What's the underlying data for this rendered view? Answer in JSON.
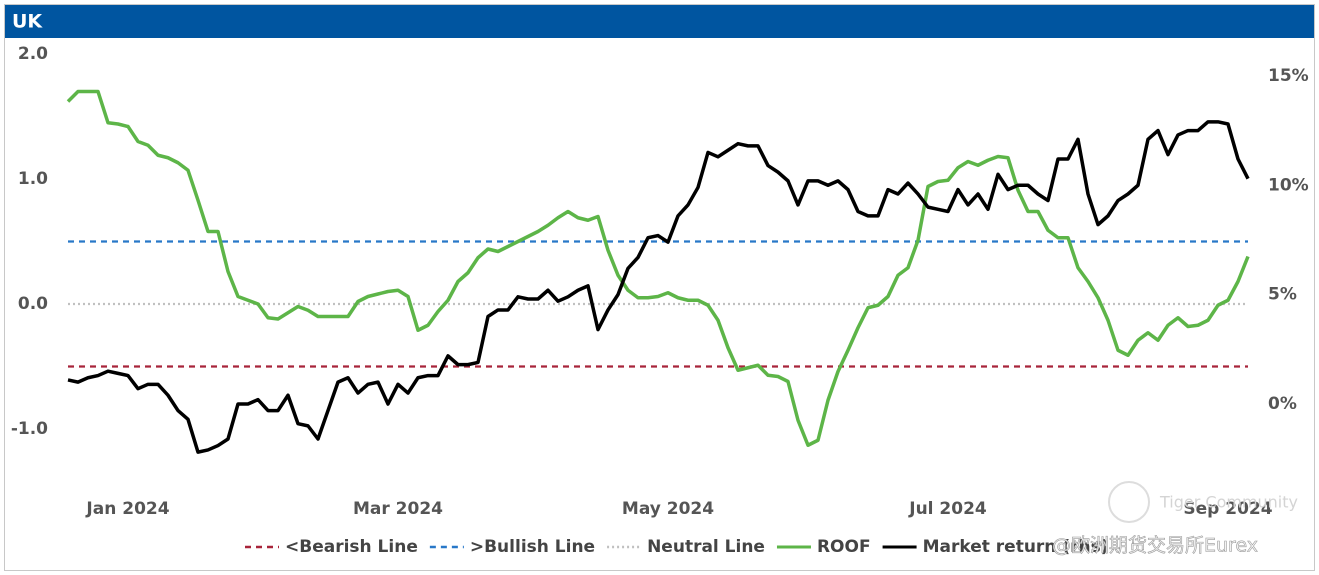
{
  "chart_data": {
    "type": "line",
    "title": "UK",
    "categories": [
      null,
      null,
      null,
      null,
      null,
      null,
      "Jan 2024",
      null,
      null,
      null,
      null,
      null,
      null,
      null,
      null,
      null,
      null,
      null,
      null,
      null,
      null,
      null,
      null,
      null,
      null,
      null,
      null,
      null,
      null,
      null,
      null,
      null,
      null,
      "Mar 2024",
      null,
      null,
      null,
      null,
      null,
      null,
      null,
      null,
      null,
      null,
      null,
      null,
      null,
      null,
      null,
      null,
      null,
      null,
      null,
      null,
      null,
      null,
      null,
      null,
      null,
      null,
      "May 2024",
      null,
      null,
      null,
      null,
      null,
      null,
      null,
      null,
      null,
      null,
      null,
      null,
      null,
      null,
      null,
      null,
      null,
      null,
      null,
      null,
      null,
      null,
      null,
      null,
      null,
      null,
      null,
      "Jul 2024",
      null,
      null,
      null,
      null,
      null,
      null,
      null,
      null,
      null,
      null,
      null,
      null,
      null,
      null,
      null,
      null,
      null,
      null,
      null,
      null,
      null,
      null,
      null,
      null,
      null,
      null,
      null,
      "Sep 2024",
      null,
      null
    ],
    "ylim": [
      -1.5,
      2.0
    ],
    "yticks": [
      {
        "value": 2.0,
        "label": "2.0"
      },
      {
        "value": 1.0,
        "label": "1.0"
      },
      {
        "value": 0.0,
        "label": "0.0"
      },
      {
        "value": -1.0,
        "label": "-1.0"
      }
    ],
    "y2lim": [
      -4,
      16
    ],
    "y2ticks": [
      {
        "value": 15,
        "label": "15%"
      },
      {
        "value": 10,
        "label": "10%"
      },
      {
        "value": 5,
        "label": "5%"
      },
      {
        "value": 0,
        "label": "0%"
      }
    ],
    "reference_lines": [
      {
        "name": "<Bearish Line",
        "value": -0.5,
        "color": "#a8243a",
        "style": "dashed"
      },
      {
        "name": ">Bullish Line",
        "value": 0.5,
        "color": "#2878c8",
        "style": "dashed"
      },
      {
        "name": "Neutral Line",
        "value": 0.0,
        "color": "#c0c0c0",
        "style": "dotted"
      }
    ],
    "series": [
      {
        "name": "ROOF",
        "color": "#5db548",
        "values": [
          1.62,
          1.7,
          1.7,
          1.7,
          1.45,
          1.44,
          1.42,
          1.3,
          1.27,
          1.19,
          1.17,
          1.13,
          1.07,
          0.83,
          0.58,
          0.58,
          0.26,
          0.06,
          0.03,
          0.0,
          -0.11,
          -0.12,
          -0.07,
          -0.02,
          -0.05,
          -0.1,
          -0.1,
          -0.1,
          -0.1,
          0.02,
          0.06,
          0.08,
          0.1,
          0.11,
          0.06,
          -0.21,
          -0.17,
          -0.06,
          0.03,
          0.18,
          0.25,
          0.37,
          0.44,
          0.42,
          0.46,
          0.5,
          0.54,
          0.58,
          0.63,
          0.69,
          0.74,
          0.69,
          0.67,
          0.7,
          0.43,
          0.23,
          0.11,
          0.05,
          0.05,
          0.06,
          0.09,
          0.05,
          0.03,
          0.03,
          -0.01,
          -0.13,
          -0.35,
          -0.53,
          -0.51,
          -0.49,
          -0.57,
          -0.58,
          -0.62,
          -0.93,
          -1.13,
          -1.09,
          -0.77,
          -0.54,
          -0.37,
          -0.19,
          -0.03,
          -0.01,
          0.06,
          0.23,
          0.29,
          0.51,
          0.94,
          0.98,
          0.99,
          1.09,
          1.14,
          1.11,
          1.15,
          1.18,
          1.17,
          0.91,
          0.74,
          0.74,
          0.59,
          0.53,
          0.53,
          0.29,
          0.18,
          0.05,
          -0.13,
          -0.37,
          -0.41,
          -0.29,
          -0.23,
          -0.29,
          -0.17,
          -0.11,
          -0.18,
          -0.17,
          -0.13,
          -0.01,
          0.03,
          0.18,
          0.38
        ]
      },
      {
        "name": "Market return (rhs)",
        "color": "#000000",
        "axis": "y2",
        "values": [
          1.1,
          1.0,
          1.2,
          1.3,
          1.5,
          1.4,
          1.3,
          0.7,
          0.9,
          0.9,
          0.4,
          -0.3,
          -0.7,
          -2.2,
          -2.1,
          -1.9,
          -1.6,
          0.0,
          0.0,
          0.2,
          -0.3,
          -0.3,
          0.4,
          -0.9,
          -1.0,
          -1.6,
          -0.3,
          1.0,
          1.2,
          0.5,
          0.9,
          1.0,
          0.0,
          0.9,
          0.5,
          1.2,
          1.3,
          1.3,
          2.2,
          1.8,
          1.8,
          1.9,
          4.0,
          4.3,
          4.3,
          4.9,
          4.8,
          4.8,
          5.2,
          4.7,
          4.9,
          5.2,
          5.4,
          3.4,
          4.3,
          5.0,
          6.2,
          6.7,
          7.6,
          7.7,
          7.4,
          8.6,
          9.1,
          9.9,
          11.5,
          11.3,
          11.6,
          11.9,
          11.8,
          11.8,
          10.9,
          10.6,
          10.2,
          9.1,
          10.2,
          10.2,
          10.0,
          10.2,
          9.8,
          8.8,
          8.6,
          8.6,
          9.8,
          9.6,
          10.1,
          9.6,
          9.0,
          8.9,
          8.8,
          9.8,
          9.1,
          9.6,
          8.9,
          10.5,
          9.8,
          10.0,
          10.0,
          9.6,
          9.3,
          11.2,
          11.2,
          12.1,
          9.6,
          8.2,
          8.6,
          9.3,
          9.6,
          10.0,
          12.1,
          12.5,
          11.4,
          12.3,
          12.5,
          12.5,
          12.9,
          12.9,
          12.8,
          11.2,
          10.3
        ]
      }
    ],
    "annotations": [
      "Tiger Community",
      "@欧洲期货交易所Eurex"
    ]
  }
}
